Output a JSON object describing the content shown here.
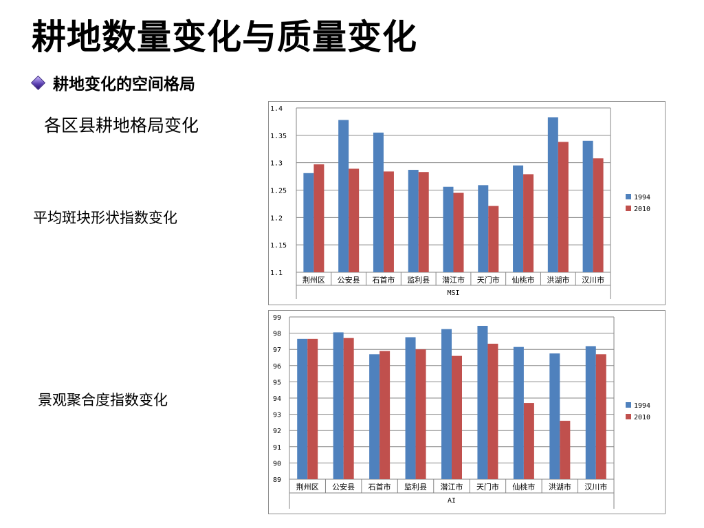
{
  "slide": {
    "title": "耕地数量变化与质量变化",
    "bullet": "耕地变化的空间格局",
    "label_region": "各区县耕地格局变化",
    "label_msi": "平均斑块形状指数变化",
    "label_ai": "景观聚合度指数变化"
  },
  "colors": {
    "s1994": "#4f81bd",
    "s2010": "#c0504d",
    "grid": "#868686"
  },
  "chart_data": [
    {
      "type": "bar",
      "categories": [
        "荆州区",
        "公安县",
        "石首市",
        "监利县",
        "潜江市",
        "天门市",
        "仙桃市",
        "洪湖市",
        "汉川市"
      ],
      "series": [
        {
          "name": "1994",
          "values": [
            1.281,
            1.378,
            1.355,
            1.287,
            1.256,
            1.259,
            1.295,
            1.383,
            1.34
          ]
        },
        {
          "name": "2010",
          "values": [
            1.297,
            1.289,
            1.284,
            1.283,
            1.245,
            1.221,
            1.279,
            1.338,
            1.308
          ]
        }
      ],
      "xlabel": "MSI",
      "ylim": [
        1.1,
        1.4
      ],
      "yticks": [
        "1.1",
        "1.15",
        "1.2",
        "1.25",
        "1.3",
        "1.35",
        "1.4"
      ],
      "grid": true,
      "legend": "right"
    },
    {
      "type": "bar",
      "categories": [
        "荆州区",
        "公安县",
        "石首市",
        "监利县",
        "潜江市",
        "天门市",
        "仙桃市",
        "洪湖市",
        "汉川市"
      ],
      "series": [
        {
          "name": "1994",
          "values": [
            97.65,
            98.05,
            96.7,
            97.75,
            98.25,
            98.45,
            97.15,
            96.75,
            97.2
          ]
        },
        {
          "name": "2010",
          "values": [
            97.65,
            97.7,
            96.9,
            97.0,
            96.6,
            97.35,
            93.7,
            92.6,
            96.7
          ]
        }
      ],
      "xlabel": "AI",
      "ylim": [
        89,
        99
      ],
      "yticks": [
        "89",
        "90",
        "91",
        "92",
        "93",
        "94",
        "95",
        "96",
        "97",
        "98",
        "99"
      ],
      "grid": true,
      "legend": "right"
    }
  ]
}
